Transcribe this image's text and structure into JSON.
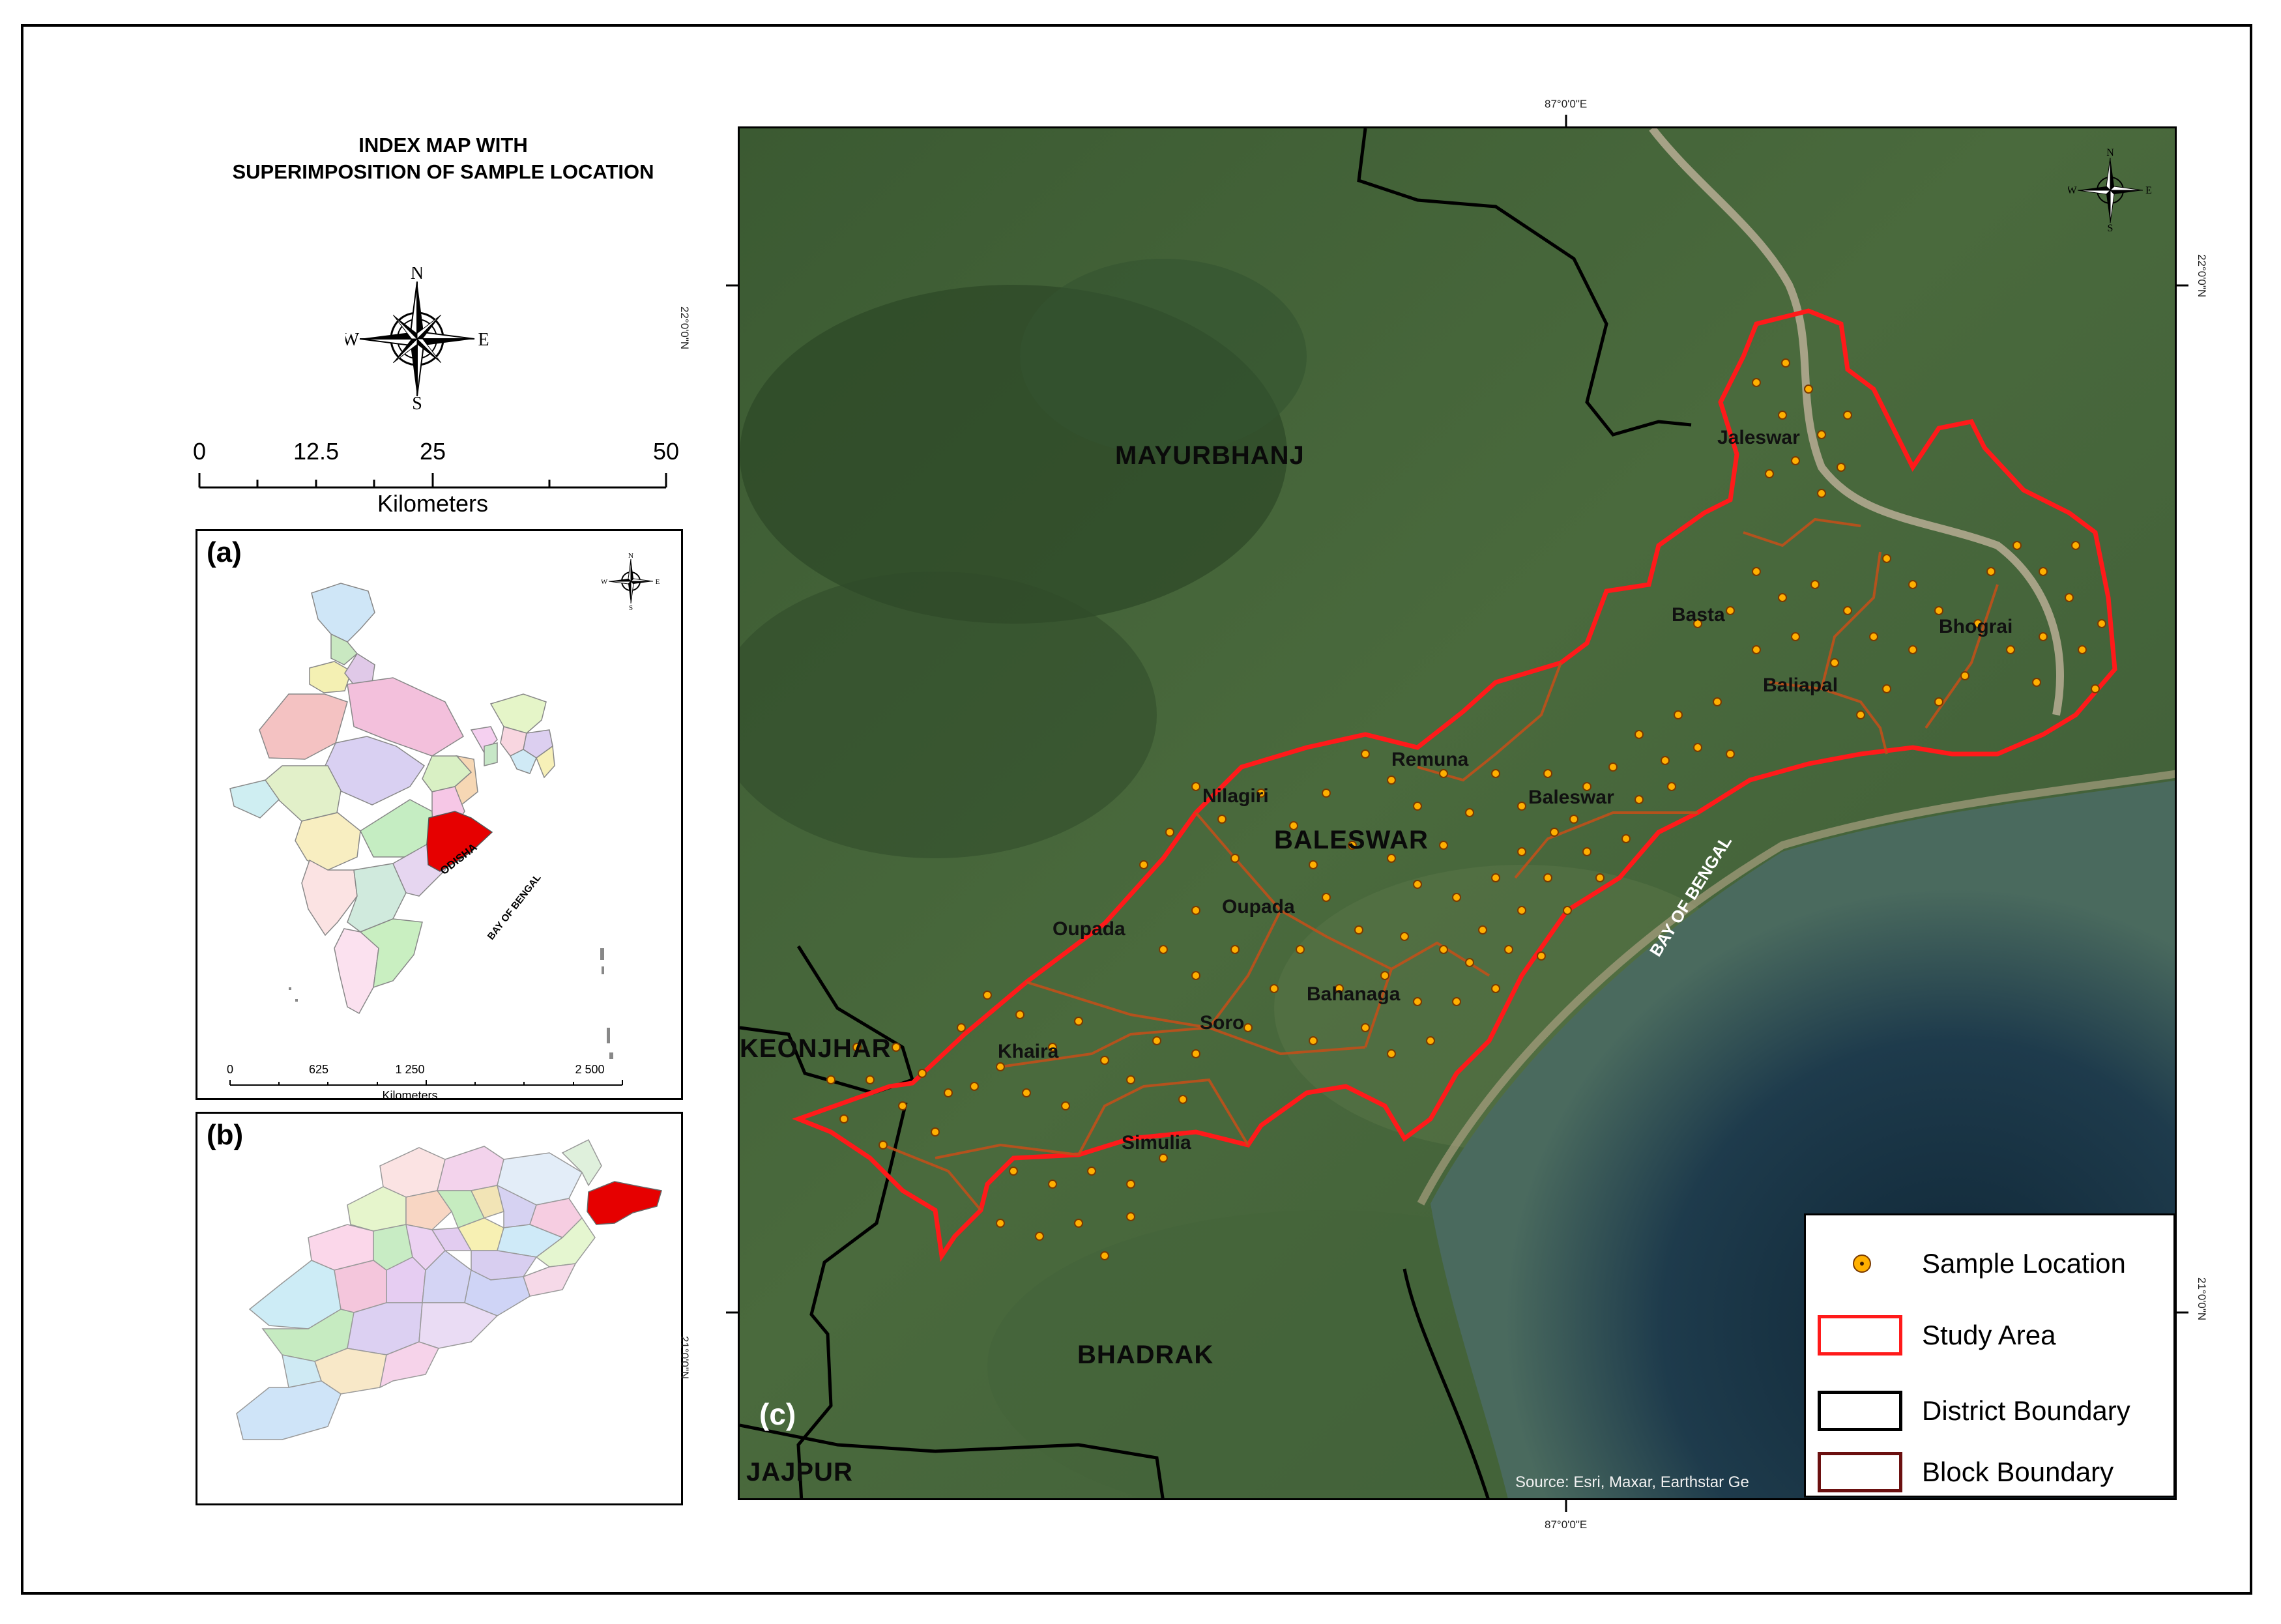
{
  "title": {
    "line1": "INDEX MAP WITH",
    "line2": "SUPERIMPOSITION OF SAMPLE LOCATION"
  },
  "compass": {
    "n": "N",
    "s": "S",
    "e": "E",
    "w": "W"
  },
  "scale_bar": {
    "ticks": [
      "0",
      "12.5",
      "25",
      "50"
    ],
    "unit": "Kilometers"
  },
  "panel_a": {
    "tag": "(a)",
    "state_label": "ODISHA",
    "sea_label": "BAY OF BENGAL",
    "scale_ticks": [
      "0",
      "625",
      "1 250",
      "2 500"
    ],
    "scale_unit": "Kilometers",
    "highlight_color": "#e60000"
  },
  "panel_b": {
    "tag": "(b)",
    "highlight_color": "#e60000"
  },
  "main_map": {
    "tag": "(c)",
    "longitude_label": "87°0'0\"E",
    "latitude_top": "22°0'0\"N",
    "latitude_bottom": "21°0'0\"N",
    "districts": [
      "MAYURBHANJ",
      "BALESWAR",
      "KEONJHAR",
      "BHADRAK",
      "JAJPUR"
    ],
    "blocks": [
      "Jaleswar",
      "Basta",
      "Bhograi",
      "Baliapal",
      "Remuna",
      "Baleswar",
      "Nilagiri",
      "Oupada",
      "Oupada",
      "Bahanaga",
      "Soro",
      "Khaira",
      "Simulia"
    ],
    "sea_label": "BAY OF BENGAL",
    "source_text": "Source: Esri, Maxar, Earthstar Ge",
    "colors": {
      "study_area": "#ff1a1a",
      "block_boundary": "#c0501a",
      "district_boundary": "#000000",
      "sample_fill": "#ffb000",
      "land": "#3d5a34",
      "sea": "#1c3646"
    }
  },
  "legend": {
    "items": [
      {
        "label": "Sample Location",
        "symbol": "sample"
      },
      {
        "label": "Study Area",
        "symbol": "study-area"
      },
      {
        "label": "District Boundary",
        "symbol": "district"
      },
      {
        "label": "Block Boundary",
        "symbol": "block"
      }
    ]
  }
}
